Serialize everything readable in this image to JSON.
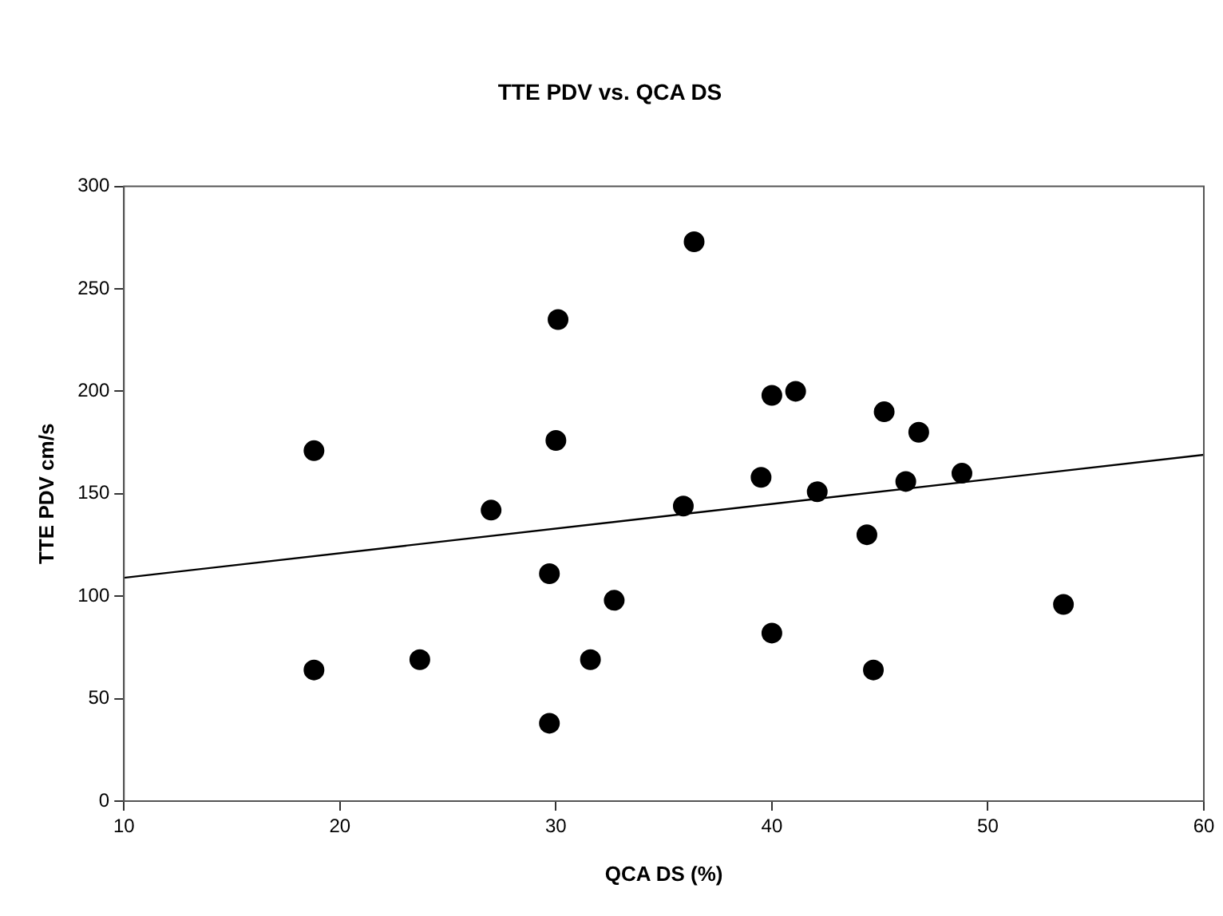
{
  "chart_data": {
    "type": "scatter",
    "title": "TTE PDV vs. QCA DS",
    "xlabel": "QCA DS (%)",
    "ylabel": "TTE PDV cm/s",
    "xlim": [
      10,
      60
    ],
    "xticks": [
      10,
      20,
      30,
      40,
      50,
      60
    ],
    "ylim": [
      0,
      300
    ],
    "yticks": [
      0,
      50,
      100,
      150,
      200,
      250,
      300
    ],
    "grid": false,
    "legend": false,
    "marker": "circle",
    "series": [
      {
        "color": "#000000",
        "x": [
          18.8,
          23.7,
          27.0,
          29.7,
          32.7,
          31.6,
          29.7,
          30.1,
          18.8,
          30.0,
          36.4,
          40.0,
          41.1,
          45.2,
          46.8,
          39.5,
          48.8,
          46.2,
          42.1,
          35.9,
          44.4,
          53.5,
          40.0,
          44.7
        ],
        "values": [
          64,
          69,
          142,
          111,
          98,
          69,
          38,
          235,
          171,
          176,
          273,
          198,
          200,
          190,
          180,
          158,
          160,
          156,
          151,
          144,
          130,
          96,
          82,
          64
        ]
      },
      {
        "type": "line",
        "marker": "none",
        "color": "#000000",
        "x": [
          10,
          60
        ],
        "values": [
          109,
          169
        ]
      }
    ]
  }
}
